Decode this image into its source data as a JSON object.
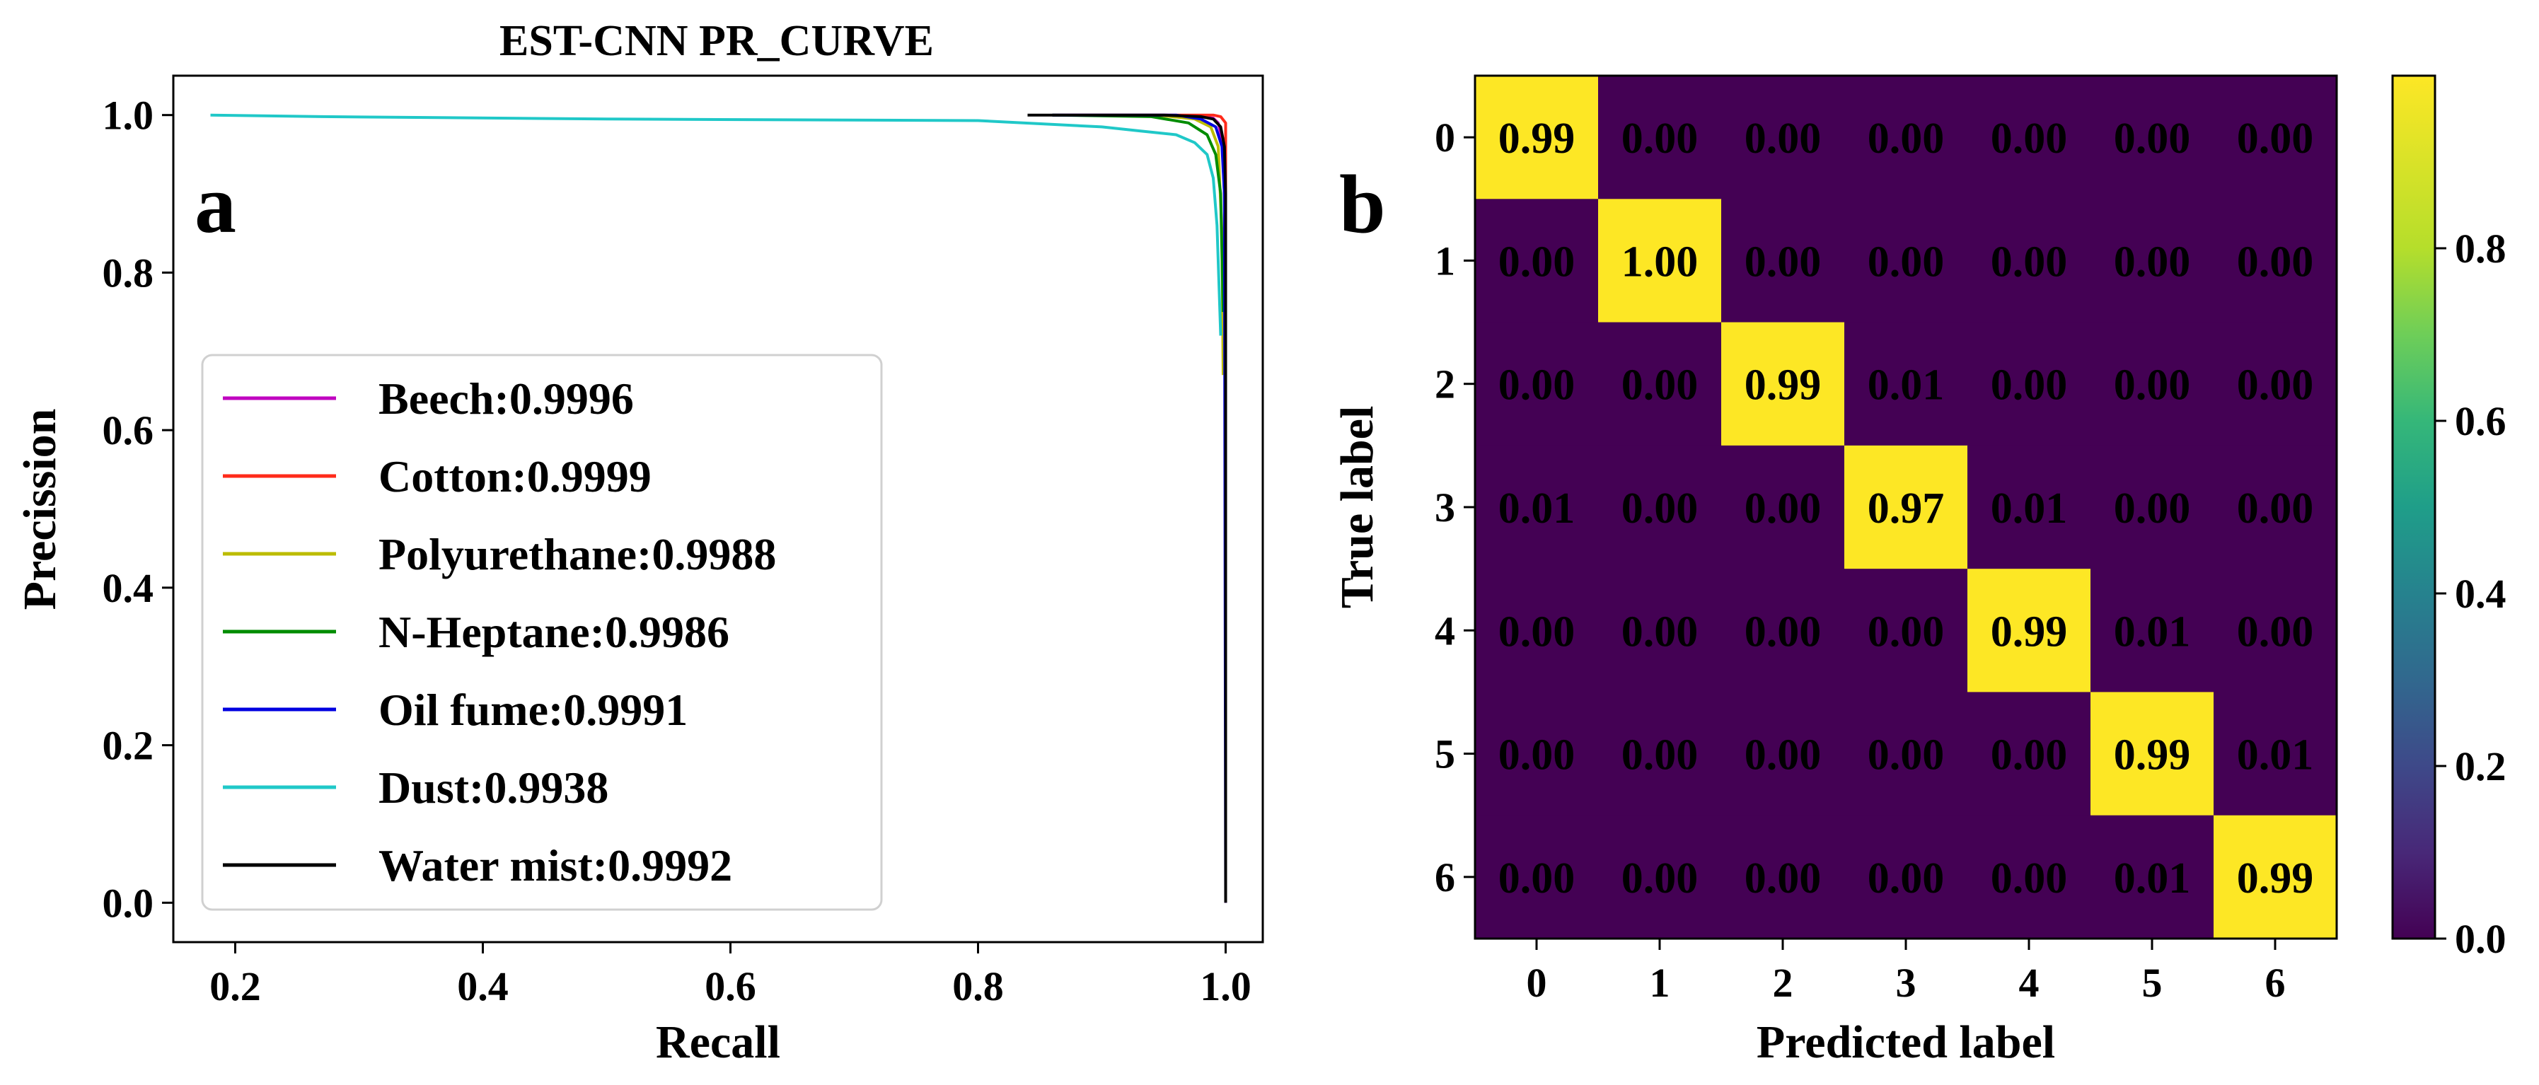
{
  "panel_labels": {
    "a": "a",
    "b": "b"
  },
  "chart_data": [
    {
      "type": "line",
      "title": "EST-CNN PR_CURVE",
      "xlabel": "Recall",
      "ylabel": "Precission",
      "xlim": [
        0.15,
        1.03
      ],
      "ylim": [
        -0.05,
        1.05
      ],
      "xticks": [
        0.2,
        0.4,
        0.6,
        0.8,
        1.0
      ],
      "xtick_labels": [
        "0.2",
        "0.4",
        "0.6",
        "0.8",
        "1.0"
      ],
      "yticks": [
        0.0,
        0.2,
        0.4,
        0.6,
        0.8,
        1.0
      ],
      "ytick_labels": [
        "0.0",
        "0.2",
        "0.4",
        "0.6",
        "0.8",
        "1.0"
      ],
      "grid": false,
      "legend_position": "lower-left",
      "series": [
        {
          "name": "Beech:0.9996",
          "color": "#c000c0",
          "points": [
            [
              0.86,
              1.0
            ],
            [
              0.95,
              1.0
            ],
            [
              0.98,
              0.998
            ],
            [
              0.99,
              0.996
            ],
            [
              0.994,
              0.99
            ],
            [
              0.997,
              0.97
            ],
            [
              0.999,
              0.9
            ],
            [
              1.0,
              0.8
            ],
            [
              1.0,
              0.0
            ]
          ]
        },
        {
          "name": "Cotton:0.9999",
          "color": "#ff2a1a",
          "points": [
            [
              0.86,
              1.0
            ],
            [
              0.97,
              1.0
            ],
            [
              0.99,
              1.0
            ],
            [
              0.996,
              0.998
            ],
            [
              1.0,
              0.99
            ],
            [
              1.0,
              0.95
            ],
            [
              1.0,
              0.0
            ]
          ]
        },
        {
          "name": "Polyurethane:0.9988",
          "color": "#bcbc00",
          "points": [
            [
              0.86,
              1.0
            ],
            [
              0.95,
              0.999
            ],
            [
              0.975,
              0.995
            ],
            [
              0.988,
              0.985
            ],
            [
              0.994,
              0.96
            ],
            [
              0.997,
              0.85
            ],
            [
              0.998,
              0.67
            ]
          ]
        },
        {
          "name": "N-Heptane:0.9986",
          "color": "#008c00",
          "points": [
            [
              0.86,
              1.0
            ],
            [
              0.94,
              0.998
            ],
            [
              0.97,
              0.99
            ],
            [
              0.985,
              0.975
            ],
            [
              0.992,
              0.95
            ],
            [
              0.996,
              0.9
            ],
            [
              0.998,
              0.75
            ]
          ]
        },
        {
          "name": "Oil fume:0.9991",
          "color": "#0000e0",
          "points": [
            [
              0.86,
              1.0
            ],
            [
              0.96,
              1.0
            ],
            [
              0.98,
              0.995
            ],
            [
              0.992,
              0.985
            ],
            [
              0.997,
              0.96
            ],
            [
              0.999,
              0.9
            ],
            [
              1.0,
              0.0
            ]
          ]
        },
        {
          "name": "Dust:0.9938",
          "color": "#20c8c8",
          "points": [
            [
              0.18,
              1.0
            ],
            [
              0.27,
              0.998
            ],
            [
              0.5,
              0.995
            ],
            [
              0.8,
              0.993
            ],
            [
              0.9,
              0.985
            ],
            [
              0.93,
              0.98
            ],
            [
              0.96,
              0.975
            ],
            [
              0.975,
              0.965
            ],
            [
              0.985,
              0.95
            ],
            [
              0.99,
              0.92
            ],
            [
              0.993,
              0.86
            ],
            [
              0.996,
              0.72
            ]
          ]
        },
        {
          "name": "Water mist:0.9992",
          "color": "#000000",
          "points": [
            [
              0.84,
              1.0
            ],
            [
              0.95,
              1.0
            ],
            [
              0.98,
              0.998
            ],
            [
              0.99,
              0.995
            ],
            [
              0.996,
              0.985
            ],
            [
              0.999,
              0.96
            ],
            [
              1.0,
              0.9
            ],
            [
              1.0,
              0.0
            ]
          ]
        }
      ]
    },
    {
      "type": "heatmap",
      "xlabel": "Predicted label",
      "ylabel": "True label",
      "x_categories": [
        "0",
        "1",
        "2",
        "3",
        "4",
        "5",
        "6"
      ],
      "y_categories": [
        "0",
        "1",
        "2",
        "3",
        "4",
        "5",
        "6"
      ],
      "matrix": [
        [
          "0.99",
          "0.00",
          "0.00",
          "0.00",
          "0.00",
          "0.00",
          "0.00"
        ],
        [
          "0.00",
          "1.00",
          "0.00",
          "0.00",
          "0.00",
          "0.00",
          "0.00"
        ],
        [
          "0.00",
          "0.00",
          "0.99",
          "0.01",
          "0.00",
          "0.00",
          "0.00"
        ],
        [
          "0.01",
          "0.00",
          "0.00",
          "0.97",
          "0.01",
          "0.00",
          "0.00"
        ],
        [
          "0.00",
          "0.00",
          "0.00",
          "0.00",
          "0.99",
          "0.01",
          "0.00"
        ],
        [
          "0.00",
          "0.00",
          "0.00",
          "0.00",
          "0.00",
          "0.99",
          "0.01"
        ],
        [
          "0.00",
          "0.00",
          "0.00",
          "0.00",
          "0.00",
          "0.01",
          "0.99"
        ]
      ],
      "colormap": "viridis",
      "colorbar_range": [
        0.0,
        1.0
      ],
      "colorbar_ticks": [
        "0.0",
        "0.2",
        "0.4",
        "0.6",
        "0.8"
      ],
      "colors": {
        "low": "#440154",
        "high": "#fde725",
        "cell_text": "#fde725",
        "cell_text_on_high": "#440154"
      }
    }
  ]
}
